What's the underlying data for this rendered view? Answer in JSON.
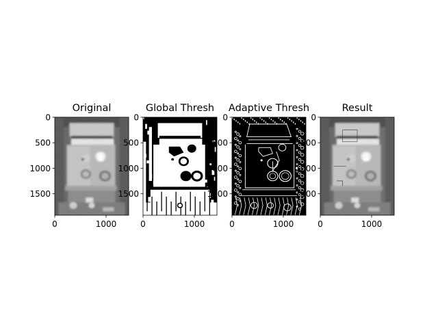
{
  "chart_data": [
    {
      "type": "image",
      "title": "Original",
      "render": "grayscale",
      "xlim": [
        0,
        1440
      ],
      "ylim": [
        1920,
        0
      ],
      "xticks": [
        0,
        1000
      ],
      "yticks": [
        0,
        500,
        1000,
        1500
      ]
    },
    {
      "type": "image",
      "title": "Global Thresh",
      "render": "binary-global",
      "xlim": [
        0,
        1440
      ],
      "ylim": [
        1920,
        0
      ],
      "xticks": [
        0,
        1000
      ],
      "yticks": [
        0,
        500,
        1000,
        1500
      ]
    },
    {
      "type": "image",
      "title": "Adaptive Thresh",
      "render": "binary-adaptive",
      "xlim": [
        0,
        1440
      ],
      "ylim": [
        1920,
        0
      ],
      "xticks": [
        0,
        1000
      ],
      "yticks": [
        0,
        500,
        1000,
        1500
      ]
    },
    {
      "type": "image",
      "title": "Result",
      "render": "grayscale-result",
      "xlim": [
        0,
        1440
      ],
      "ylim": [
        1920,
        0
      ],
      "xticks": [
        0,
        1000
      ],
      "yticks": [
        0,
        500,
        1000,
        1500
      ]
    }
  ]
}
